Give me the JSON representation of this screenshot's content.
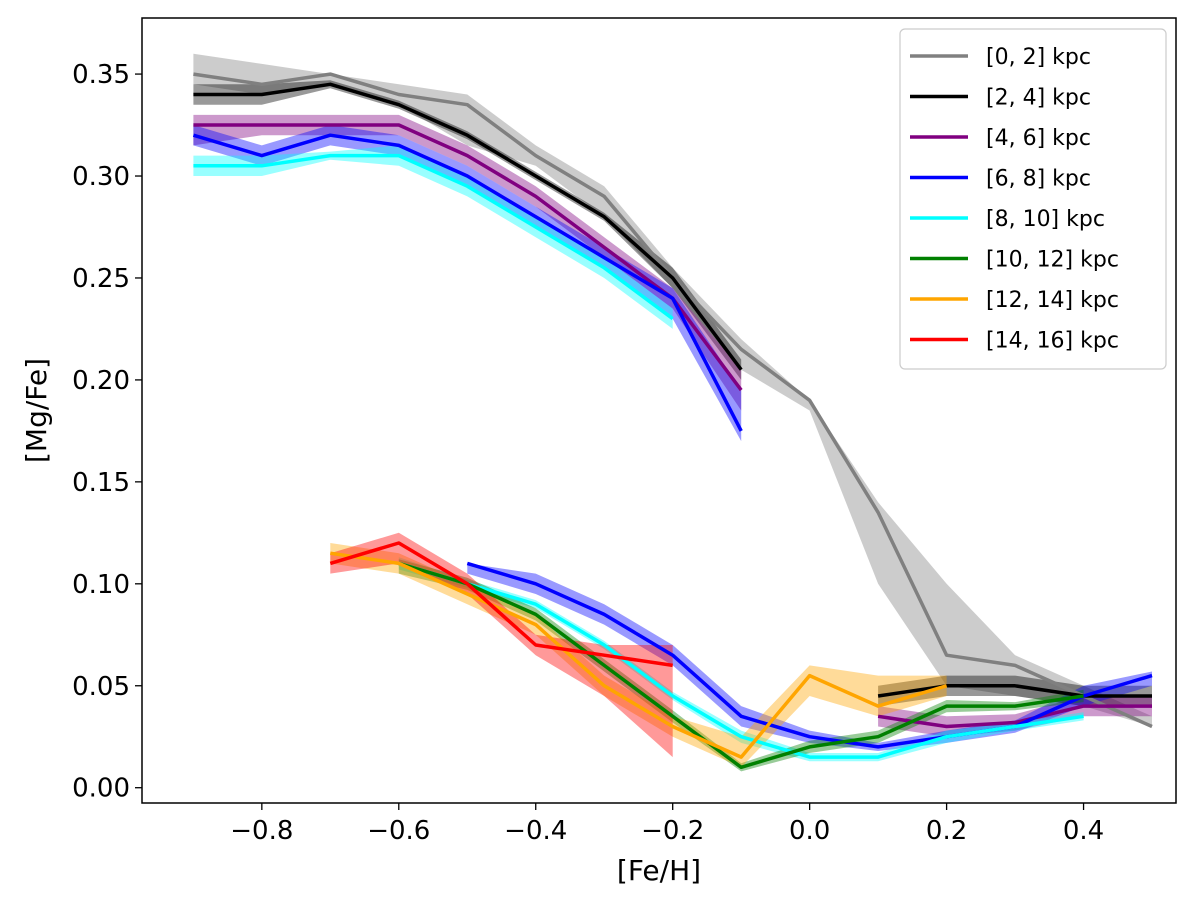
{
  "chart_data": {
    "type": "line",
    "title": "",
    "xlabel": "[Fe/H]",
    "ylabel": "[Mg/Fe]",
    "xlim": [
      -0.975,
      0.535
    ],
    "ylim": [
      -0.0075,
      0.3775
    ],
    "xticks": [
      -0.8,
      -0.6,
      -0.4,
      -0.2,
      0.0,
      0.2,
      0.4
    ],
    "xtick_labels": [
      "−0.8",
      "−0.6",
      "−0.4",
      "−0.2",
      "0.0",
      "0.2",
      "0.4"
    ],
    "yticks": [
      0.0,
      0.05,
      0.1,
      0.15,
      0.2,
      0.25,
      0.3,
      0.35
    ],
    "ytick_labels": [
      "0.00",
      "0.05",
      "0.10",
      "0.15",
      "0.20",
      "0.25",
      "0.30",
      "0.35"
    ],
    "grid": false,
    "legend_position": "top-right",
    "series": [
      {
        "name": "[0, 2] kpc",
        "color": "#808080",
        "segments": [
          {
            "x": [
              -0.9,
              -0.8,
              -0.7,
              -0.6,
              -0.5,
              -0.4,
              -0.3,
              -0.2,
              -0.1,
              0.0,
              0.1,
              0.2,
              0.3,
              0.4,
              0.5
            ],
            "y": [
              0.35,
              0.345,
              0.35,
              0.34,
              0.335,
              0.31,
              0.29,
              0.25,
              0.215,
              0.19,
              0.135,
              0.065,
              0.06,
              0.045,
              0.03
            ],
            "y_low": [
              0.345,
              0.34,
              0.345,
              0.335,
              0.315,
              0.305,
              0.28,
              0.245,
              0.205,
              0.185,
              0.1,
              0.05,
              0.045,
              0.04,
              0.03
            ],
            "y_high": [
              0.36,
              0.355,
              0.35,
              0.345,
              0.34,
              0.315,
              0.295,
              0.255,
              0.22,
              0.19,
              0.14,
              0.1,
              0.065,
              0.05,
              0.035
            ]
          }
        ]
      },
      {
        "name": "[2, 4] kpc",
        "color": "#000000",
        "segments": [
          {
            "x": [
              -0.9,
              -0.8,
              -0.7,
              -0.6,
              -0.5,
              -0.4,
              -0.3,
              -0.2,
              -0.1
            ],
            "y": [
              0.34,
              0.34,
              0.345,
              0.335,
              0.32,
              0.3,
              0.28,
              0.25,
              0.205
            ],
            "y_low": [
              0.335,
              0.335,
              0.343,
              0.333,
              0.318,
              0.298,
              0.278,
              0.245,
              0.2
            ],
            "y_high": [
              0.345,
              0.345,
              0.347,
              0.337,
              0.322,
              0.302,
              0.282,
              0.255,
              0.21
            ]
          },
          {
            "x": [
              0.1,
              0.2,
              0.3,
              0.4,
              0.5
            ],
            "y": [
              0.045,
              0.05,
              0.05,
              0.045,
              0.045
            ],
            "y_low": [
              0.04,
              0.045,
              0.045,
              0.04,
              0.04
            ],
            "y_high": [
              0.05,
              0.055,
              0.055,
              0.05,
              0.05
            ]
          }
        ]
      },
      {
        "name": "[4, 6] kpc",
        "color": "#800080",
        "segments": [
          {
            "x": [
              -0.9,
              -0.8,
              -0.7,
              -0.6,
              -0.5,
              -0.4,
              -0.3,
              -0.2,
              -0.1
            ],
            "y": [
              0.325,
              0.325,
              0.325,
              0.325,
              0.31,
              0.29,
              0.265,
              0.24,
              0.195
            ],
            "y_low": [
              0.315,
              0.32,
              0.32,
              0.32,
              0.305,
              0.285,
              0.26,
              0.235,
              0.185
            ],
            "y_high": [
              0.33,
              0.33,
              0.33,
              0.33,
              0.315,
              0.295,
              0.27,
              0.245,
              0.205
            ]
          },
          {
            "x": [
              0.1,
              0.2,
              0.3,
              0.4,
              0.5
            ],
            "y": [
              0.035,
              0.03,
              0.032,
              0.04,
              0.04
            ],
            "y_low": [
              0.03,
              0.025,
              0.028,
              0.035,
              0.035
            ],
            "y_high": [
              0.04,
              0.035,
              0.036,
              0.045,
              0.045
            ]
          }
        ]
      },
      {
        "name": "[6, 8] kpc",
        "color": "#0000ff",
        "segments": [
          {
            "x": [
              -0.9,
              -0.8,
              -0.7,
              -0.6,
              -0.5,
              -0.4,
              -0.3,
              -0.2,
              -0.1
            ],
            "y": [
              0.32,
              0.31,
              0.32,
              0.315,
              0.3,
              0.28,
              0.26,
              0.24,
              0.175
            ],
            "y_low": [
              0.315,
              0.305,
              0.315,
              0.31,
              0.295,
              0.275,
              0.255,
              0.23,
              0.17
            ],
            "y_high": [
              0.325,
              0.315,
              0.325,
              0.32,
              0.305,
              0.285,
              0.265,
              0.245,
              0.195
            ]
          },
          {
            "x": [
              -0.5,
              -0.4,
              -0.3,
              -0.2,
              -0.1,
              0.0,
              0.1,
              0.2,
              0.3,
              0.4,
              0.5
            ],
            "y": [
              0.11,
              0.1,
              0.085,
              0.065,
              0.035,
              0.025,
              0.02,
              0.025,
              0.03,
              0.045,
              0.055
            ],
            "y_low": [
              0.105,
              0.095,
              0.08,
              0.06,
              0.03,
              0.022,
              0.018,
              0.022,
              0.027,
              0.04,
              0.05
            ],
            "y_high": [
              0.11,
              0.105,
              0.09,
              0.07,
              0.04,
              0.028,
              0.022,
              0.028,
              0.033,
              0.05,
              0.057
            ]
          }
        ]
      },
      {
        "name": "[8, 10] kpc",
        "color": "#00ffff",
        "segments": [
          {
            "x": [
              -0.9,
              -0.8,
              -0.7,
              -0.6,
              -0.5,
              -0.4,
              -0.3,
              -0.2
            ],
            "y": [
              0.305,
              0.305,
              0.31,
              0.31,
              0.295,
              0.275,
              0.255,
              0.23
            ],
            "y_low": [
              0.3,
              0.3,
              0.308,
              0.305,
              0.29,
              0.27,
              0.25,
              0.225
            ],
            "y_high": [
              0.31,
              0.31,
              0.312,
              0.315,
              0.3,
              0.28,
              0.26,
              0.235
            ]
          },
          {
            "x": [
              -0.6,
              -0.5,
              -0.4,
              -0.3,
              -0.2,
              -0.1,
              0.0,
              0.1,
              0.2,
              0.3,
              0.4
            ],
            "y": [
              0.11,
              0.1,
              0.09,
              0.07,
              0.045,
              0.025,
              0.015,
              0.015,
              0.025,
              0.03,
              0.035
            ],
            "y_low": [
              0.107,
              0.098,
              0.088,
              0.068,
              0.043,
              0.022,
              0.013,
              0.013,
              0.022,
              0.028,
              0.033
            ],
            "y_high": [
              0.113,
              0.102,
              0.092,
              0.072,
              0.047,
              0.028,
              0.017,
              0.017,
              0.028,
              0.032,
              0.037
            ]
          }
        ]
      },
      {
        "name": "[10, 12] kpc",
        "color": "#008000",
        "segments": [
          {
            "x": [
              -0.6,
              -0.5,
              -0.4,
              -0.3,
              -0.2,
              -0.1,
              0.0,
              0.1,
              0.2,
              0.3,
              0.4
            ],
            "y": [
              0.11,
              0.1,
              0.085,
              0.06,
              0.035,
              0.01,
              0.02,
              0.025,
              0.04,
              0.04,
              0.045
            ],
            "y_low": [
              0.105,
              0.097,
              0.082,
              0.057,
              0.032,
              0.008,
              0.017,
              0.022,
              0.037,
              0.038,
              0.042
            ],
            "y_high": [
              0.112,
              0.103,
              0.088,
              0.063,
              0.038,
              0.012,
              0.023,
              0.028,
              0.043,
              0.042,
              0.048
            ]
          }
        ]
      },
      {
        "name": "[12, 14] kpc",
        "color": "#ffa500",
        "segments": [
          {
            "x": [
              -0.7,
              -0.6,
              -0.5,
              -0.4,
              -0.3,
              -0.2,
              -0.1,
              0.0,
              0.1,
              0.2
            ],
            "y": [
              0.115,
              0.11,
              0.095,
              0.08,
              0.05,
              0.03,
              0.015,
              0.055,
              0.04,
              0.05
            ],
            "y_low": [
              0.11,
              0.105,
              0.09,
              0.075,
              0.045,
              0.025,
              0.01,
              0.045,
              0.035,
              0.045
            ],
            "y_high": [
              0.12,
              0.115,
              0.1,
              0.085,
              0.055,
              0.035,
              0.025,
              0.06,
              0.055,
              0.055
            ]
          }
        ]
      },
      {
        "name": "[14, 16] kpc",
        "color": "#ff0000",
        "segments": [
          {
            "x": [
              -0.7,
              -0.6,
              -0.5,
              -0.4,
              -0.3,
              -0.2
            ],
            "y": [
              0.11,
              0.12,
              0.1,
              0.07,
              0.065,
              0.06
            ],
            "y_low": [
              0.105,
              0.11,
              0.095,
              0.065,
              0.045,
              0.015
            ],
            "y_high": [
              0.115,
              0.125,
              0.105,
              0.075,
              0.07,
              0.07
            ]
          }
        ]
      }
    ]
  }
}
